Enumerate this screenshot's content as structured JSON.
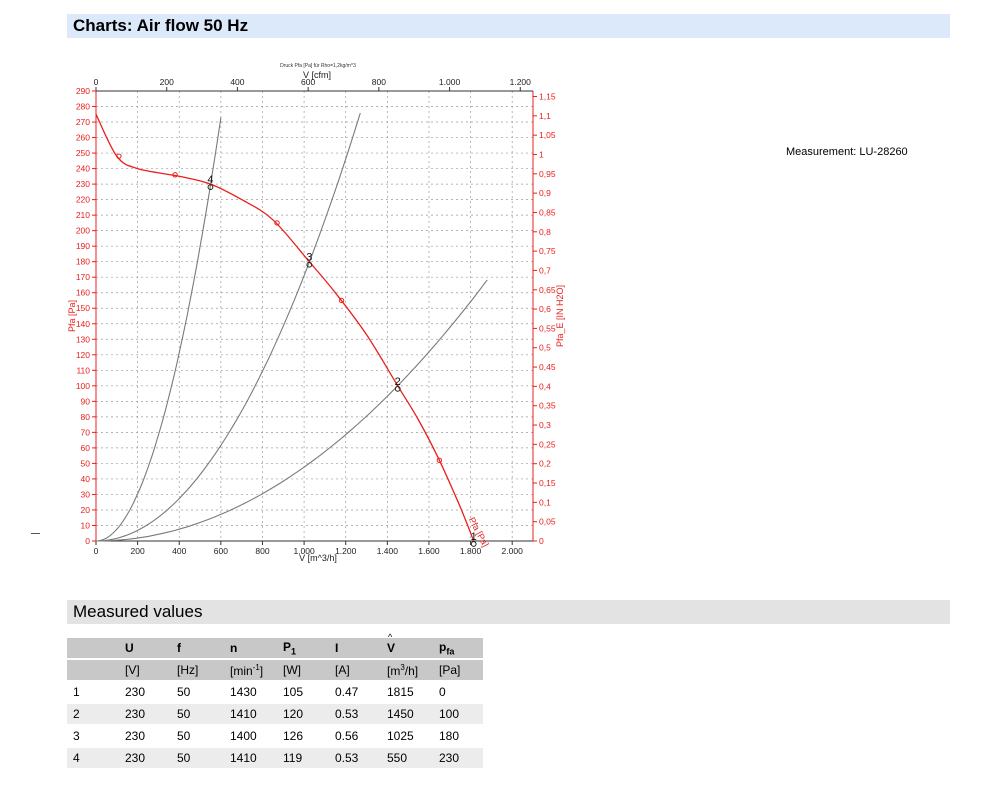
{
  "header": {
    "charts_title": "Charts: Air flow 50 Hz",
    "values_title": "Measured values"
  },
  "measurement_label": "Measurement: LU-28260",
  "chart_data": {
    "type": "line",
    "title": "Druck Pfa [Pa] für Rho=1,2kg/m^3",
    "xlabel": "V [m^3/h]",
    "x2label": "V [cfm]",
    "ylabel": "Pfa [Pa]",
    "y2label": "Pfa_E [IN H2O]",
    "xlim": [
      0,
      2100
    ],
    "ylim": [
      0,
      290
    ],
    "x_ticks": [
      0,
      200,
      400,
      600,
      800,
      1000,
      1200,
      1400,
      1600,
      1800,
      2000
    ],
    "x_tick_labels": [
      "0",
      "200",
      "400",
      "600",
      "800",
      "1.000",
      "1.200",
      "1.400",
      "1.600",
      "1.800",
      "2.000"
    ],
    "x2_ticks": [
      0,
      200,
      400,
      600,
      800,
      1000,
      1200
    ],
    "x2_tick_labels": [
      "0",
      "200",
      "400",
      "600",
      "800",
      "1.000",
      "1.200"
    ],
    "y_ticks": [
      0,
      10,
      20,
      30,
      40,
      50,
      60,
      70,
      80,
      90,
      100,
      110,
      120,
      130,
      140,
      150,
      160,
      170,
      180,
      190,
      200,
      210,
      220,
      230,
      240,
      250,
      260,
      270,
      280,
      290
    ],
    "y2_ticks": [
      0,
      0.05,
      0.1,
      0.15,
      0.2,
      0.25,
      0.3,
      0.35,
      0.4,
      0.45,
      0.5,
      0.55,
      0.6,
      0.65,
      0.7,
      0.75,
      0.8,
      0.85,
      0.9,
      0.95,
      1,
      1.05,
      1.1,
      1.15
    ],
    "y2_tick_labels": [
      "0",
      "0,05",
      "0,1",
      "0,15",
      "0,2",
      "0,25",
      "0,3",
      "0,35",
      "0,4",
      "0,45",
      "0,5",
      "0,55",
      "0,6",
      "0,65",
      "0,7",
      "0,75",
      "0,8",
      "0,85",
      "0,9",
      "0,95",
      "1",
      "1,05",
      "1,1",
      "1,15"
    ],
    "grid": true,
    "fan_curve": {
      "name": "Pfa [Pa]",
      "color": "#e8201c",
      "x": [
        0,
        100,
        200,
        400,
        550,
        700,
        850,
        1025,
        1150,
        1300,
        1450,
        1550,
        1650,
        1750,
        1815
      ],
      "y": [
        275,
        248,
        240,
        235,
        230,
        220,
        207,
        180,
        160,
        133,
        100,
        78,
        52,
        22,
        0
      ]
    },
    "fan_markers": {
      "x": [
        110,
        380,
        870,
        1180,
        1650
      ],
      "y": [
        248,
        236,
        205,
        155,
        52
      ]
    },
    "system_curves": [
      {
        "color": "#7a7a7a",
        "x": [
          0,
          550,
          600
        ],
        "k": 0.000758
      },
      {
        "color": "#7a7a7a",
        "x": [
          0,
          1025,
          1270
        ],
        "k": 0.000171
      },
      {
        "color": "#7a7a7a",
        "x": [
          0,
          1450,
          1880
        ],
        "k": 4.76e-05
      }
    ],
    "operating_points": [
      {
        "label": "1",
        "x": 1815,
        "y": 0
      },
      {
        "label": "2",
        "x": 1450,
        "y": 100
      },
      {
        "label": "3",
        "x": 1025,
        "y": 180
      },
      {
        "label": "4",
        "x": 550,
        "y": 230
      }
    ]
  },
  "table": {
    "headers": [
      "",
      "U",
      "f",
      "n",
      "P1",
      "I",
      "V",
      "pfa"
    ],
    "units": [
      "",
      "[V]",
      "[Hz]",
      "[min-1]",
      "[W]",
      "[A]",
      "[m3/h]",
      "[Pa]"
    ],
    "rows": [
      [
        "1",
        "230",
        "50",
        "1430",
        "105",
        "0.47",
        "1815",
        "0"
      ],
      [
        "2",
        "230",
        "50",
        "1410",
        "120",
        "0.53",
        "1450",
        "100"
      ],
      [
        "3",
        "230",
        "50",
        "1400",
        "126",
        "0.56",
        "1025",
        "180"
      ],
      [
        "4",
        "230",
        "50",
        "1410",
        "119",
        "0.53",
        "550",
        "230"
      ]
    ]
  }
}
